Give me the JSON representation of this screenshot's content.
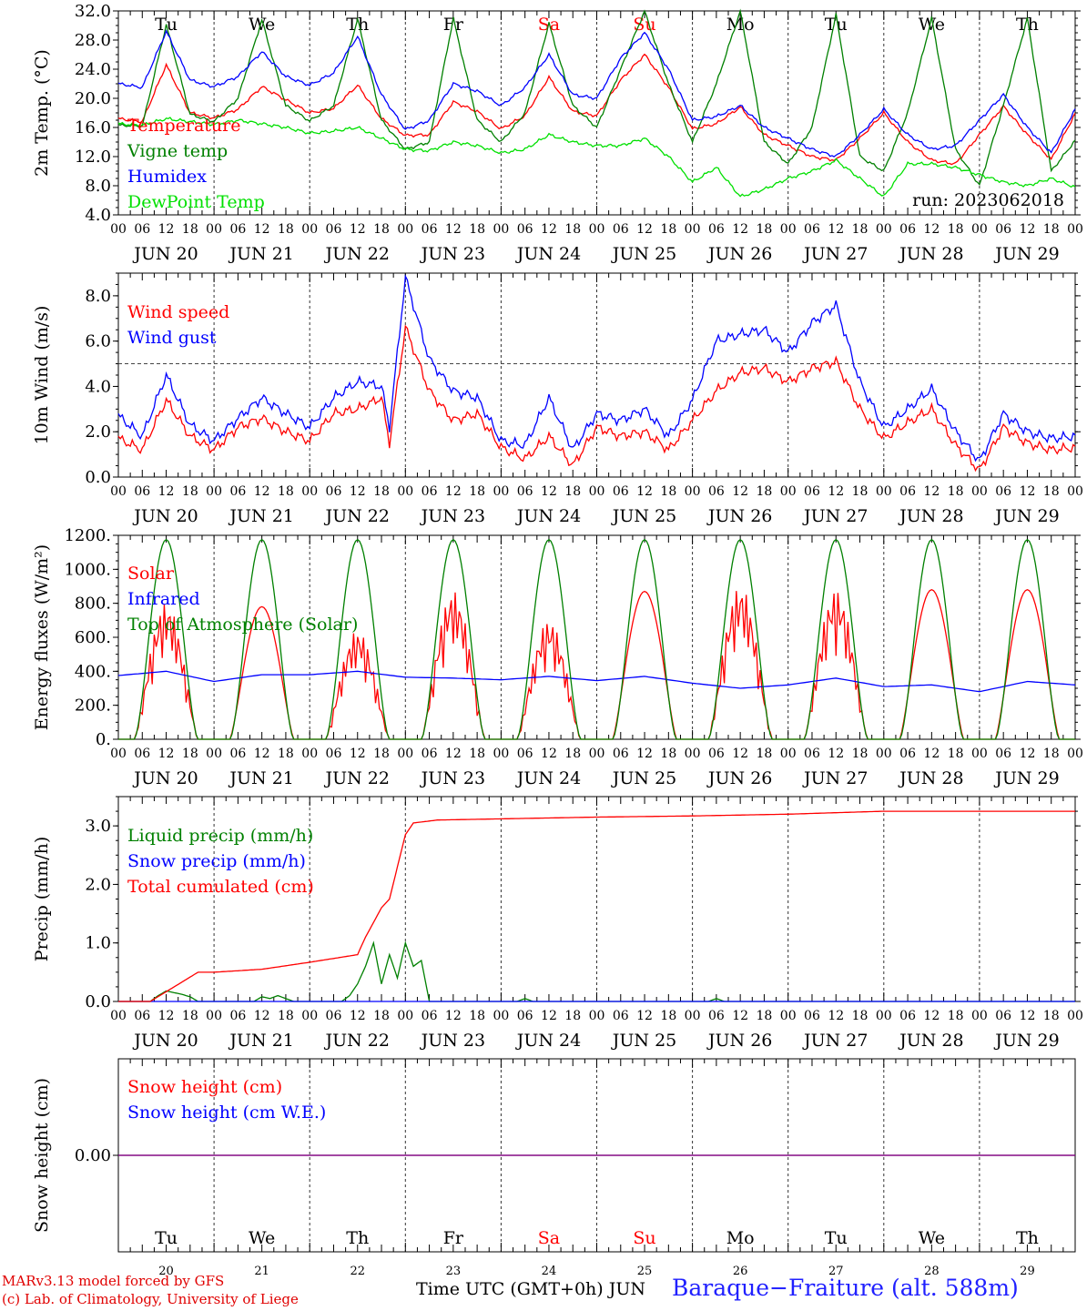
{
  "colors": {
    "red": "#ff0000",
    "green": "#008000",
    "blue": "#0000ff",
    "lightgreen": "#00e000",
    "weekend": "#ff0000",
    "snowline": "#7f007f"
  },
  "days": [
    {
      "abbr": "Tu",
      "date": "JUN 20",
      "num": "20",
      "weekend": false
    },
    {
      "abbr": "We",
      "date": "JUN 21",
      "num": "21",
      "weekend": false
    },
    {
      "abbr": "Th",
      "date": "JUN 22",
      "num": "22",
      "weekend": false
    },
    {
      "abbr": "Fr",
      "date": "JUN 23",
      "num": "23",
      "weekend": false
    },
    {
      "abbr": "Sa",
      "date": "JUN 24",
      "num": "24",
      "weekend": true
    },
    {
      "abbr": "Su",
      "date": "JUN 25",
      "num": "25",
      "weekend": true
    },
    {
      "abbr": "Mo",
      "date": "JUN 26",
      "num": "26",
      "weekend": false
    },
    {
      "abbr": "Tu",
      "date": "JUN 27",
      "num": "27",
      "weekend": false
    },
    {
      "abbr": "We",
      "date": "JUN 28",
      "num": "28",
      "weekend": false
    },
    {
      "abbr": "Th",
      "date": "JUN 29",
      "num": "29",
      "weekend": false
    }
  ],
  "hour_labels": [
    "00",
    "06",
    "12",
    "18"
  ],
  "final_hour_label": "00",
  "chart_data": [
    {
      "id": "temp",
      "type": "line",
      "ylabel": "2m Temp. (°C)",
      "ylim": [
        4,
        32
      ],
      "yticks": [
        "4.0",
        "8.0",
        "12.0",
        "16.0",
        "20.0",
        "24.0",
        "28.0",
        "32.0"
      ],
      "show_day_abbr": true,
      "annotation": "run: 2023062018",
      "x_unit": "hours since JUN 20 00 UTC",
      "series": [
        {
          "name": "Temperature",
          "color": "red",
          "x": [
            0,
            6,
            12,
            18,
            24,
            30,
            36,
            42,
            48,
            54,
            60,
            66,
            72,
            78,
            84,
            90,
            96,
            102,
            108,
            114,
            120,
            126,
            132,
            138,
            144,
            150,
            156,
            162,
            168,
            174,
            180,
            186,
            192,
            198,
            204,
            210,
            216,
            222,
            228,
            234,
            240
          ],
          "y": [
            17.2,
            16.8,
            24.6,
            18.0,
            17.3,
            18.5,
            21.6,
            19.8,
            18.0,
            18.6,
            21.8,
            17.2,
            14.9,
            15.0,
            19.5,
            18.2,
            15.8,
            17.6,
            22.9,
            18.2,
            17.6,
            22.5,
            26.0,
            21.5,
            15.8,
            16.5,
            18.8,
            15.0,
            13.5,
            12.0,
            11.5,
            14.5,
            18.0,
            14.0,
            11.5,
            11.0,
            15.0,
            18.9,
            15.0,
            11.6,
            17.9
          ]
        },
        {
          "name": "Vigne temp",
          "color": "green",
          "x": [
            0,
            6,
            12,
            18,
            24,
            30,
            36,
            42,
            48,
            54,
            60,
            66,
            72,
            78,
            84,
            90,
            96,
            102,
            108,
            114,
            120,
            126,
            132,
            138,
            144,
            150,
            156,
            162,
            168,
            174,
            180,
            186,
            192,
            198,
            204,
            210,
            216,
            222,
            228,
            234,
            240
          ],
          "y": [
            16.3,
            16.2,
            30.1,
            17.8,
            16.8,
            20.0,
            30.8,
            19.0,
            16.9,
            19.0,
            30.9,
            17.0,
            13.0,
            14.0,
            31.0,
            17.0,
            14.0,
            18.0,
            30.3,
            19.0,
            16.0,
            24.0,
            32.0,
            22.0,
            14.0,
            22.0,
            32.0,
            14.0,
            11.0,
            16.0,
            31.5,
            12.0,
            10.0,
            18.0,
            31.0,
            13.0,
            8.0,
            19.0,
            31.0,
            10.0,
            14.2
          ]
        },
        {
          "name": "Humidex",
          "color": "blue",
          "x": [
            0,
            6,
            12,
            18,
            24,
            30,
            36,
            42,
            48,
            54,
            60,
            66,
            72,
            78,
            84,
            90,
            96,
            102,
            108,
            114,
            120,
            126,
            132,
            138,
            144,
            150,
            156,
            162,
            168,
            174,
            180,
            186,
            192,
            198,
            204,
            210,
            216,
            222,
            228,
            234,
            240
          ],
          "y": [
            22.0,
            21.5,
            29.2,
            22.5,
            21.6,
            23.0,
            26.4,
            23.0,
            21.8,
            23.5,
            28.5,
            20.5,
            15.7,
            17.0,
            22.0,
            21.0,
            19.0,
            21.5,
            26.0,
            20.5,
            20.0,
            25.5,
            29.0,
            24.0,
            17.0,
            17.5,
            19.0,
            16.0,
            14.5,
            13.0,
            12.0,
            15.0,
            18.5,
            15.0,
            13.0,
            13.5,
            17.0,
            20.5,
            16.0,
            12.5,
            18.5
          ]
        },
        {
          "name": "DewPoint Temp",
          "color": "lightgreen",
          "x": [
            0,
            6,
            12,
            18,
            24,
            30,
            36,
            42,
            48,
            54,
            60,
            66,
            72,
            78,
            84,
            90,
            96,
            102,
            108,
            114,
            120,
            126,
            132,
            138,
            144,
            150,
            156,
            162,
            168,
            174,
            180,
            186,
            192,
            198,
            204,
            210,
            216,
            222,
            228,
            234,
            240
          ],
          "y": [
            16.5,
            16.3,
            17.2,
            16.8,
            16.4,
            17.0,
            16.5,
            16.0,
            15.2,
            15.5,
            16.0,
            14.5,
            13.0,
            12.8,
            14.0,
            13.5,
            12.5,
            13.0,
            15.0,
            14.0,
            13.5,
            13.5,
            14.5,
            12.0,
            8.5,
            10.5,
            6.5,
            7.5,
            9.0,
            10.0,
            11.5,
            9.0,
            6.5,
            11.0,
            11.0,
            10.5,
            9.5,
            8.5,
            8.0,
            9.0,
            7.8
          ]
        }
      ]
    },
    {
      "id": "wind",
      "type": "line",
      "ylabel": "10m Wind (m/s)",
      "ylim": [
        0,
        9
      ],
      "yticks": [
        "0.0",
        "2.0",
        "4.0",
        "6.0",
        "8.0"
      ],
      "ref_line": 5,
      "x_unit": "hours since JUN 20 00 UTC",
      "series": [
        {
          "name": "Wind speed",
          "color": "red",
          "x": [
            0,
            6,
            12,
            18,
            24,
            30,
            36,
            42,
            48,
            54,
            60,
            66,
            68,
            72,
            78,
            84,
            90,
            96,
            102,
            108,
            114,
            120,
            126,
            132,
            138,
            144,
            150,
            156,
            162,
            168,
            174,
            180,
            186,
            192,
            198,
            204,
            210,
            216,
            222,
            228,
            234,
            240
          ],
          "y": [
            1.7,
            1.2,
            3.4,
            1.8,
            1.2,
            2.2,
            2.6,
            2.0,
            1.6,
            2.8,
            3.0,
            3.5,
            1.5,
            6.6,
            3.8,
            2.5,
            2.8,
            1.3,
            0.8,
            1.8,
            0.5,
            2.2,
            1.8,
            2.0,
            1.2,
            2.5,
            3.8,
            4.6,
            4.8,
            4.2,
            4.8,
            5.1,
            3.0,
            1.7,
            2.4,
            3.0,
            1.4,
            0.3,
            2.2,
            1.5,
            1.2,
            1.3
          ]
        },
        {
          "name": "Wind gust",
          "color": "blue",
          "x": [
            0,
            6,
            12,
            18,
            24,
            30,
            36,
            42,
            48,
            54,
            60,
            66,
            68,
            72,
            78,
            84,
            90,
            96,
            102,
            108,
            114,
            120,
            126,
            132,
            138,
            144,
            150,
            156,
            162,
            168,
            174,
            180,
            186,
            192,
            198,
            204,
            210,
            216,
            222,
            228,
            234,
            240
          ],
          "y": [
            2.7,
            1.8,
            4.5,
            2.3,
            1.6,
            2.6,
            3.5,
            2.8,
            2.2,
            3.5,
            4.2,
            4.0,
            2.2,
            8.8,
            5.2,
            3.8,
            3.5,
            1.6,
            1.4,
            3.5,
            1.2,
            2.8,
            2.5,
            3.0,
            1.8,
            3.4,
            6.0,
            6.3,
            6.5,
            5.5,
            6.8,
            7.6,
            4.2,
            2.2,
            3.0,
            3.9,
            2.0,
            0.7,
            2.8,
            2.0,
            1.7,
            1.8
          ]
        }
      ]
    },
    {
      "id": "energy",
      "type": "line",
      "ylabel": "Energy fluxes (W/m²)",
      "ylim": [
        0,
        1200
      ],
      "yticks": [
        "0.",
        "200.",
        "400.",
        "600.",
        "800.",
        "1000.",
        "1200."
      ],
      "x_unit": "hours since JUN 20 00 UTC",
      "sunrise_hour": 4,
      "sunset_hour": 20,
      "series": [
        {
          "name": "Solar",
          "color": "red",
          "daily_peak": [
            800,
            780,
            640,
            870,
            700,
            870,
            900,
            880,
            880,
            880
          ]
        },
        {
          "name": "Infrared",
          "color": "blue",
          "x": [
            0,
            12,
            24,
            36,
            48,
            60,
            72,
            84,
            96,
            108,
            120,
            132,
            144,
            156,
            168,
            180,
            192,
            204,
            216,
            228,
            240
          ],
          "y": [
            375,
            400,
            340,
            380,
            380,
            400,
            365,
            360,
            350,
            370,
            345,
            370,
            330,
            300,
            320,
            360,
            310,
            320,
            280,
            340,
            320
          ]
        },
        {
          "name": "Top of Atmosphere (Solar)",
          "color": "green",
          "daily_peak": [
            1175,
            1175,
            1175,
            1175,
            1175,
            1175,
            1175,
            1175,
            1175,
            1175
          ]
        }
      ]
    },
    {
      "id": "precip",
      "type": "line",
      "ylabel": "Precip (mm/h)",
      "ylim": [
        0,
        3.5
      ],
      "yticks": [
        "0.0",
        "1.0",
        "2.0",
        "3.0"
      ],
      "x_unit": "hours since JUN 20 00 UTC",
      "series": [
        {
          "name": "Liquid precip (mm/h)",
          "color": "green",
          "x": [
            0,
            8,
            10,
            12,
            14,
            16,
            18,
            20,
            34,
            36,
            38,
            40,
            42,
            44,
            56,
            58,
            60,
            62,
            64,
            66,
            68,
            70,
            72,
            74,
            76,
            78,
            96,
            100,
            102,
            104,
            148,
            150,
            152,
            240
          ],
          "y": [
            0,
            0,
            0.1,
            0.18,
            0.15,
            0.12,
            0.08,
            0,
            0,
            0.08,
            0.05,
            0.1,
            0.05,
            0,
            0,
            0.1,
            0.3,
            0.6,
            1.0,
            0.3,
            0.8,
            0.4,
            1.0,
            0.6,
            0.7,
            0,
            0,
            0,
            0.05,
            0,
            0,
            0.05,
            0,
            0
          ]
        },
        {
          "name": "Snow precip (mm/h)",
          "color": "blue",
          "x": [
            0,
            240
          ],
          "y": [
            0,
            0
          ]
        },
        {
          "name": "Total cumulated (cm)",
          "color": "red",
          "x": [
            0,
            8,
            14,
            20,
            24,
            36,
            48,
            60,
            62,
            66,
            68,
            70,
            72,
            74,
            80,
            96,
            120,
            144,
            168,
            192,
            216,
            240
          ],
          "y": [
            0,
            0,
            0.25,
            0.5,
            0.5,
            0.55,
            0.67,
            0.8,
            1.1,
            1.6,
            1.75,
            2.3,
            2.85,
            3.05,
            3.1,
            3.12,
            3.15,
            3.17,
            3.2,
            3.25,
            3.25,
            3.25
          ]
        }
      ]
    },
    {
      "id": "snow",
      "type": "line",
      "ylabel": "Snow height (cm)",
      "ylim": [
        -1,
        1
      ],
      "yticks": [
        "0.00"
      ],
      "x_unit": "hours since JUN 20 00 UTC",
      "series": [
        {
          "name": "Snow height (cm)",
          "color": "red",
          "x": [
            0,
            240
          ],
          "y": [
            0,
            0
          ]
        },
        {
          "name": "Snow height (cm W.E.)",
          "color": "blue",
          "x": [
            0,
            240
          ],
          "y": [
            0,
            0
          ]
        }
      ]
    }
  ],
  "footer": {
    "credit_line1": "MARv3.13 model forced by GFS",
    "credit_line2": "(c) Lab. of Climatology, University of Liege",
    "xaxis_title": "Time UTC (GMT+0h) JUN",
    "station": "Baraque−Fraiture (alt. 588m)"
  }
}
